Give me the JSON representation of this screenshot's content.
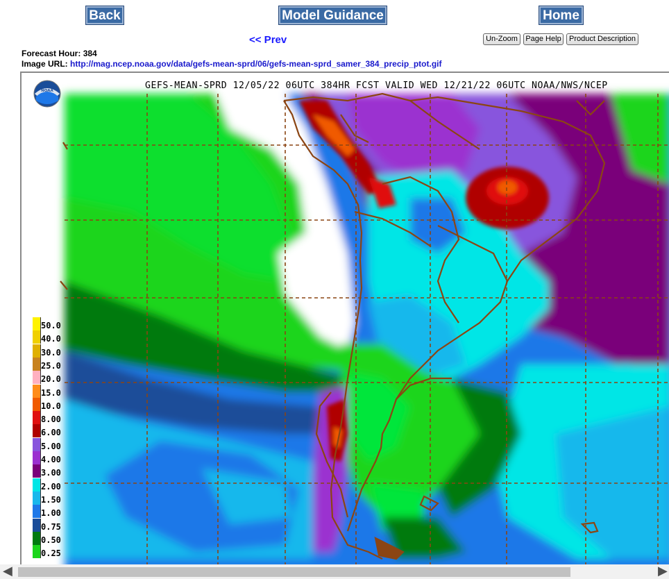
{
  "nav": {
    "back_label": "Back",
    "model_label": "Model Guidance",
    "home_label": "Home",
    "prev_label": "<< Prev"
  },
  "tools": {
    "unzoom_label": "Un-Zoom",
    "help_label": "Page Help",
    "desc_label": "Product Description"
  },
  "info": {
    "hour_label": "Forecast Hour:",
    "hour_value": "384",
    "url_label": "Image URL:",
    "url_value": "http://mag.ncep.noaa.gov/data/gefs-mean-sprd/06/gefs-mean-sprd_samer_384_precip_ptot.gif"
  },
  "map": {
    "title": "GEFS-MEAN-SPRD 12/05/22 06UTC 384HR FCST VALID WED 12/21/22 06UTC NOAA/NWS/NCEP",
    "logo_text": "NOAA",
    "border_color": "#8b4513",
    "legend": [
      {
        "label": "50.0",
        "color": "#fff200"
      },
      {
        "label": "40.0",
        "color": "#f0d000"
      },
      {
        "label": "30.0",
        "color": "#e0b000"
      },
      {
        "label": "25.0",
        "color": "#c8821e"
      },
      {
        "label": "20.0",
        "color": "#ffb0c0"
      },
      {
        "label": "15.0",
        "color": "#ff8c1a"
      },
      {
        "label": "10.0",
        "color": "#f05a00"
      },
      {
        "label": "8.00",
        "color": "#e01010"
      },
      {
        "label": "6.00",
        "color": "#b00000"
      },
      {
        "label": "5.00",
        "color": "#8855dd"
      },
      {
        "label": "4.00",
        "color": "#9b30d0"
      },
      {
        "label": "3.00",
        "color": "#7a007a"
      },
      {
        "label": "2.00",
        "color": "#00e6e6"
      },
      {
        "label": "1.50",
        "color": "#19b8ec"
      },
      {
        "label": "1.00",
        "color": "#1e78e8"
      },
      {
        "label": "0.75",
        "color": "#1a4d99"
      },
      {
        "label": "0.50",
        "color": "#007a10"
      },
      {
        "label": "0.25",
        "color": "#1bd51b"
      }
    ]
  },
  "icons": {
    "scroll_left": "◀",
    "scroll_right": "▶"
  }
}
